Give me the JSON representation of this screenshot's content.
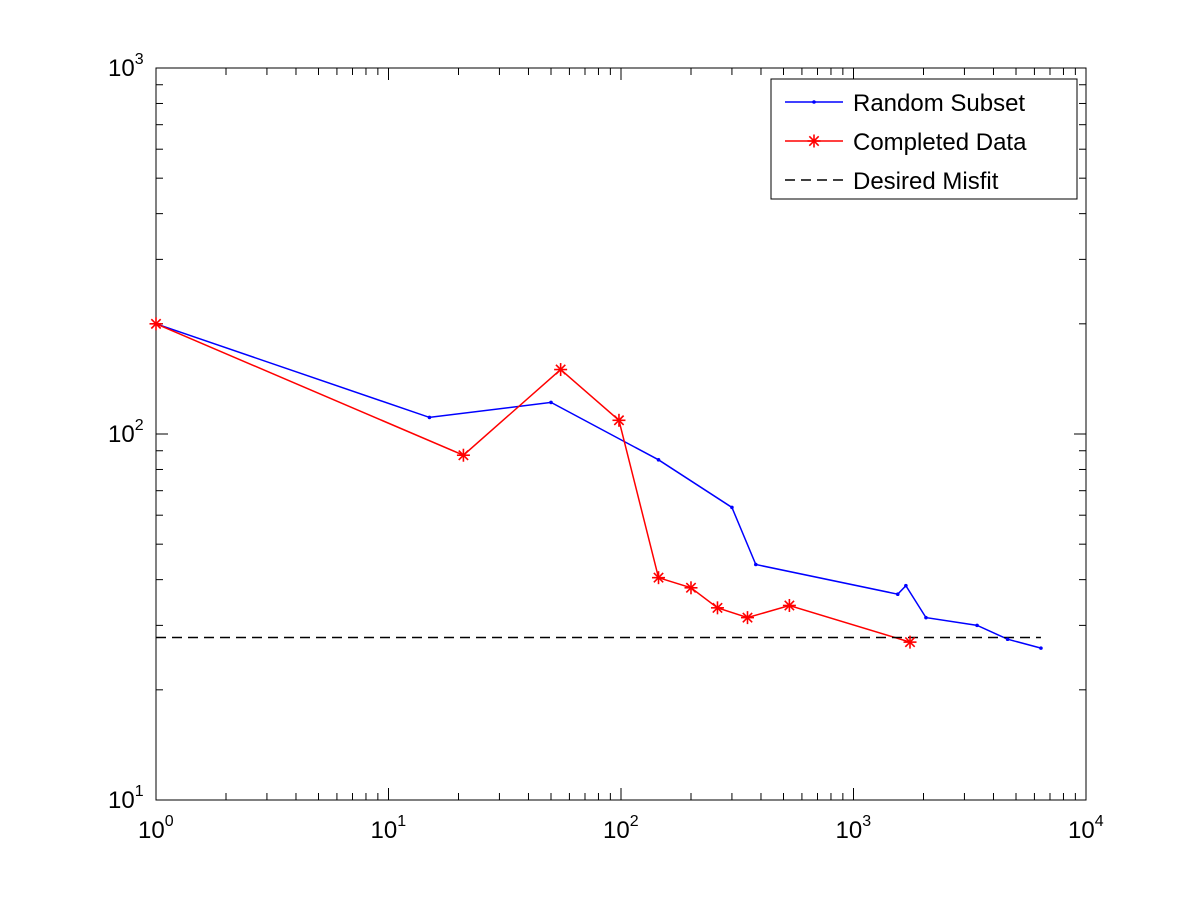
{
  "chart_data": {
    "type": "line",
    "xscale": "log",
    "yscale": "log",
    "xlim": [
      1,
      10000
    ],
    "ylim": [
      10,
      1000
    ],
    "xticks": [
      {
        "base": "10",
        "exp": "0"
      },
      {
        "base": "10",
        "exp": "1"
      },
      {
        "base": "10",
        "exp": "2"
      },
      {
        "base": "10",
        "exp": "3"
      },
      {
        "base": "10",
        "exp": "4"
      }
    ],
    "yticks": [
      {
        "base": "10",
        "exp": "1"
      },
      {
        "base": "10",
        "exp": "2"
      },
      {
        "base": "10",
        "exp": "3"
      }
    ],
    "grid": false,
    "legend_position": "top-right",
    "series": [
      {
        "name": "Random Subset",
        "color": "#0000ff",
        "marker": "dot",
        "line": "solid",
        "x": [
          1,
          15,
          50,
          145,
          300,
          380,
          1550,
          1680,
          2050,
          3400,
          4600,
          6400
        ],
        "y": [
          200,
          111,
          122,
          85,
          63,
          44,
          36.5,
          38.5,
          31.5,
          30,
          27.5,
          26
        ]
      },
      {
        "name": "Completed Data",
        "color": "#ff0000",
        "marker": "star",
        "line": "solid",
        "x": [
          1,
          21,
          55,
          98,
          145,
          200,
          260,
          350,
          530,
          1750
        ],
        "y": [
          200,
          87.5,
          150,
          109,
          40.5,
          38,
          33.5,
          31.5,
          34,
          27
        ]
      },
      {
        "name": "Desired Misfit",
        "color": "#000000",
        "marker": "none",
        "line": "dashed",
        "x": [
          1,
          6400
        ],
        "y": [
          27.8,
          27.8
        ]
      }
    ]
  }
}
